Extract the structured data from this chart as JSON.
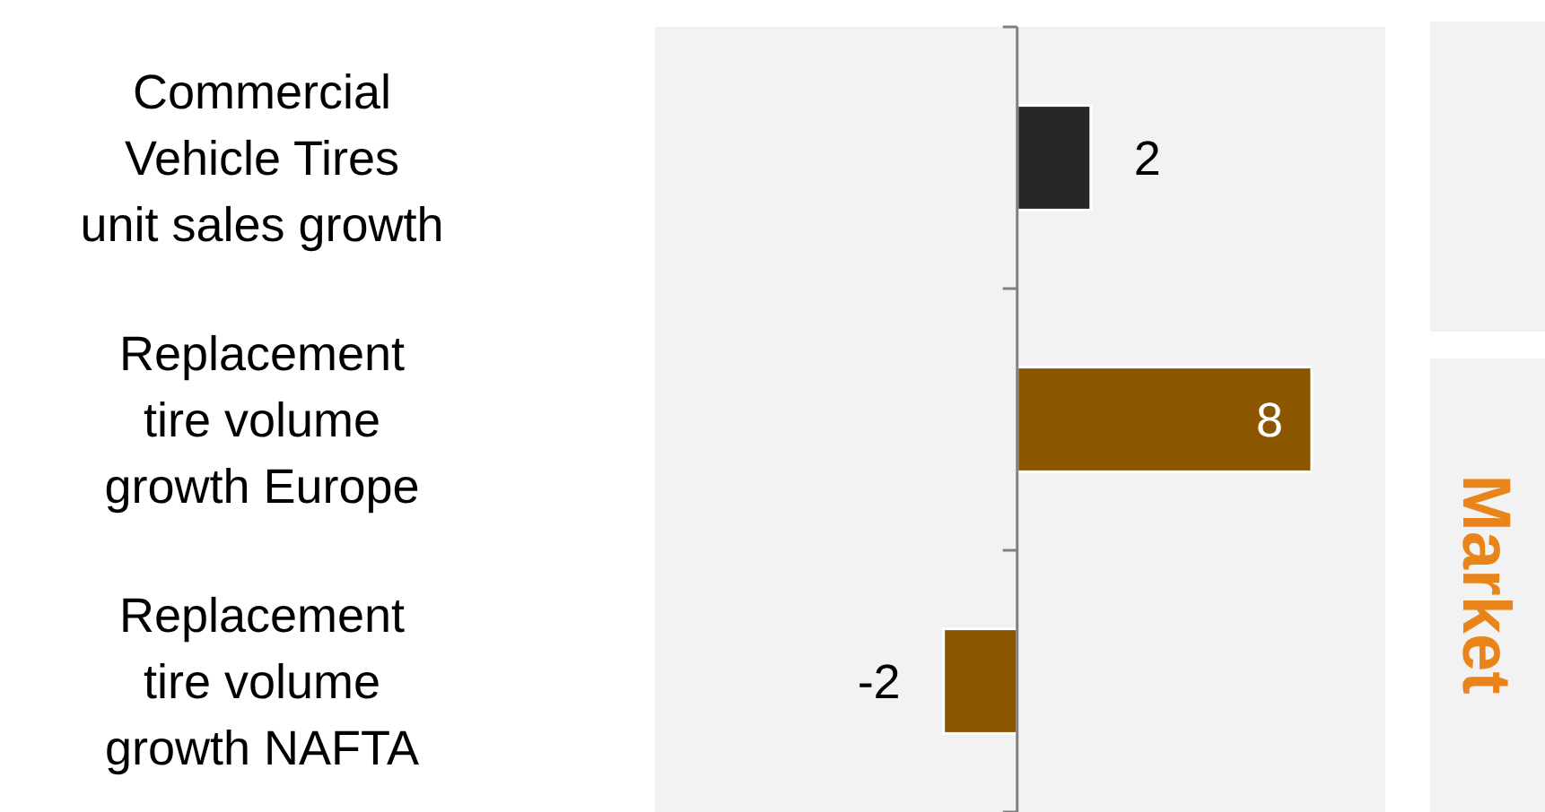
{
  "chart_data": {
    "type": "bar",
    "orientation": "horizontal",
    "categories": [
      "Commercial Vehicle Tires unit sales growth",
      "Replacement tire volume growth Europe",
      "Replacement tire volume growth NAFTA"
    ],
    "values": [
      2,
      8,
      -2
    ],
    "colors": [
      "#262626",
      "#8c5600",
      "#8c5600"
    ],
    "data_labels": true,
    "annotations": [
      "Market"
    ]
  }
}
